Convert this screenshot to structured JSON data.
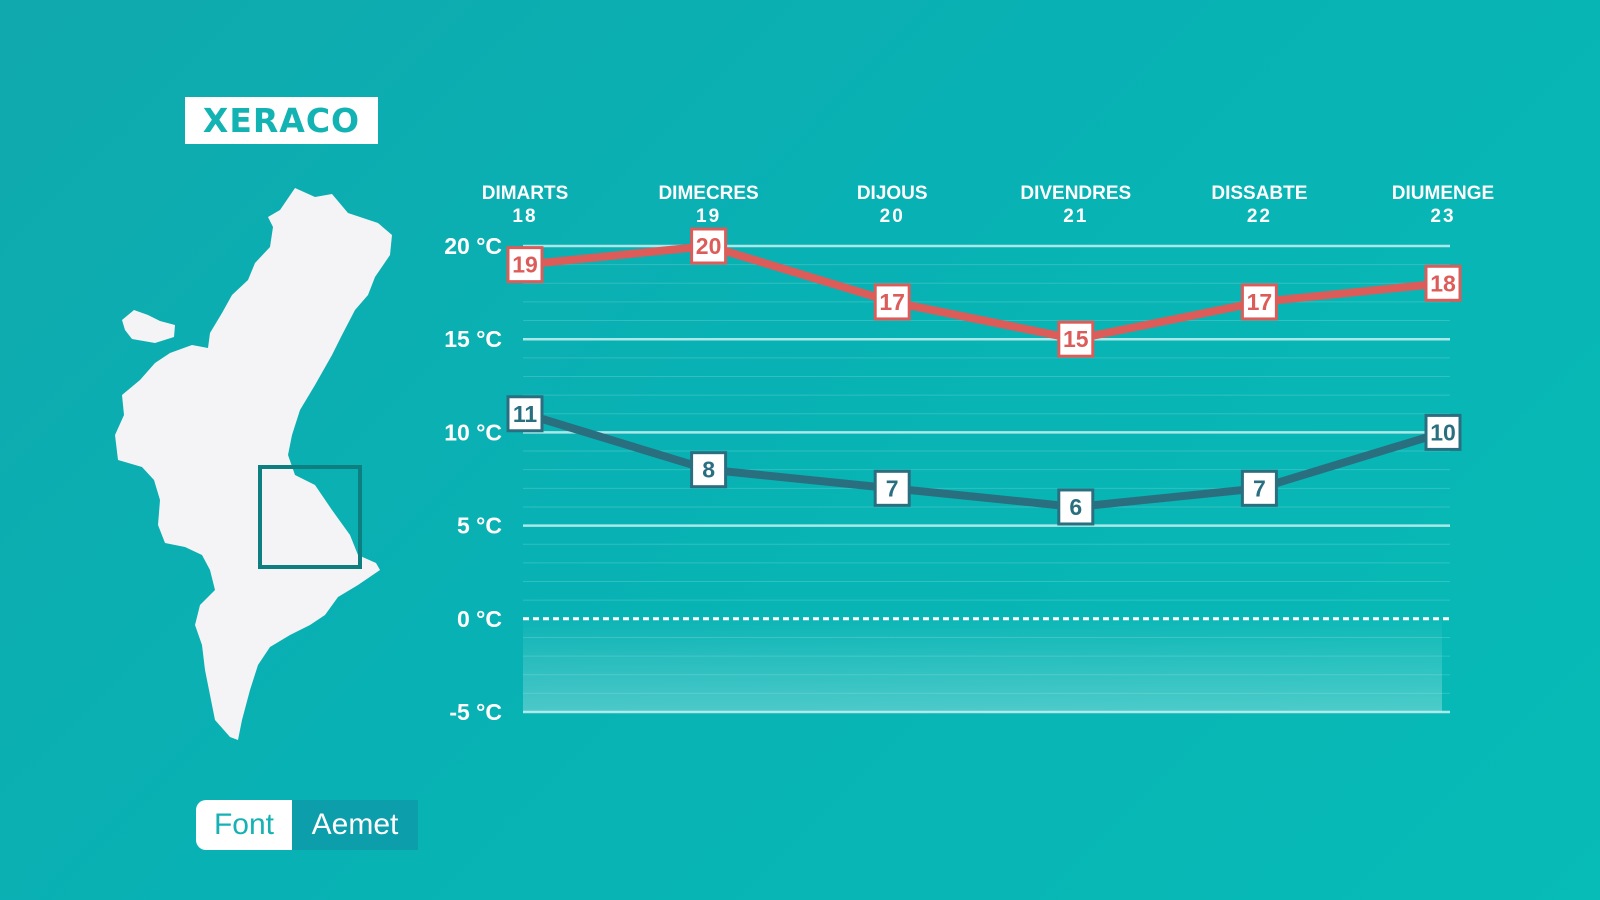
{
  "location": "XERACO",
  "source": {
    "label": "Font",
    "value": "Aemet"
  },
  "colors": {
    "max_line": "#dc5c59",
    "min_line": "#2a6f80",
    "label_bg": "#ffffff",
    "grid": "#bdeeee",
    "map_fill": "#f4f3f5",
    "map_box": "#0d7f80"
  },
  "chart_data": {
    "type": "line",
    "categories": [
      "DIMARTS 18",
      "DIMECRES 19",
      "DIJOUS 20",
      "DIVENDRES 21",
      "DISSABTE 22",
      "DIUMENGE 23"
    ],
    "days": [
      {
        "name": "DIMARTS",
        "num": "18"
      },
      {
        "name": "DIMECRES",
        "num": "19"
      },
      {
        "name": "DIJOUS",
        "num": "20"
      },
      {
        "name": "DIVENDRES",
        "num": "21"
      },
      {
        "name": "DISSABTE",
        "num": "22"
      },
      {
        "name": "DIUMENGE",
        "num": "23"
      }
    ],
    "series": [
      {
        "values": [
          19,
          20,
          17,
          15,
          17,
          18
        ]
      },
      {
        "values": [
          11,
          8,
          7,
          6,
          7,
          10
        ]
      }
    ],
    "yticks": [
      "20 °C",
      "15 °C",
      "10 °C",
      "5 °C",
      "0 °C",
      "-5 °C"
    ],
    "ylim": [
      -5,
      20
    ],
    "grid": true,
    "legend": "none"
  }
}
